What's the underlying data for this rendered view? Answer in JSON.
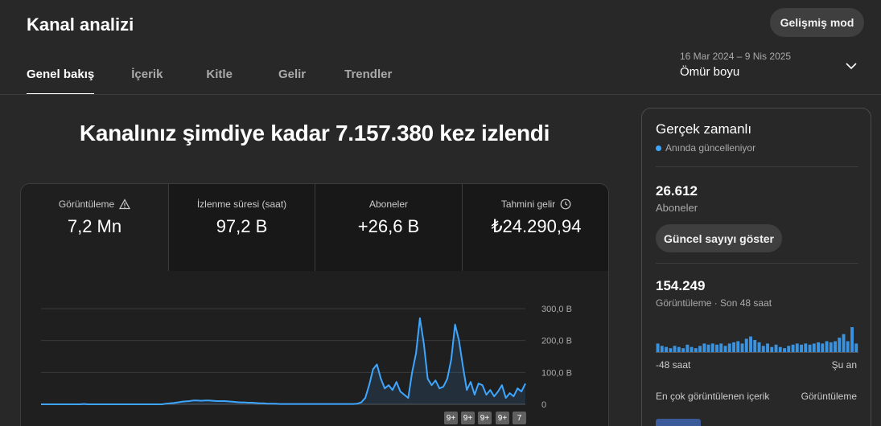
{
  "header": {
    "title": "Kanal analizi",
    "advanced_mode_label": "Gelişmiş mod"
  },
  "tabs": [
    {
      "label": "Genel bakış",
      "active": true
    },
    {
      "label": "İçerik",
      "active": false
    },
    {
      "label": "Kitle",
      "active": false
    },
    {
      "label": "Gelir",
      "active": false
    },
    {
      "label": "Trendler",
      "active": false
    }
  ],
  "date_picker": {
    "range": "16 Mar 2024 – 9 Nis 2025",
    "period": "Ömür boyu",
    "icon": "chevron-down-icon"
  },
  "headline": "Kanalınız şimdiye kadar 7.157.380 kez izlendi",
  "metrics": [
    {
      "label": "Görüntüleme",
      "value": "7,2 Mn",
      "icon": "warning-icon"
    },
    {
      "label": "İzlenme süresi (saat)",
      "value": "97,2 B"
    },
    {
      "label": "Aboneler",
      "value": "+26,6 B"
    },
    {
      "label": "Tahmini gelir",
      "value": "₺24.290,94",
      "icon": "clock-icon"
    }
  ],
  "chart_data": {
    "type": "line",
    "series": [
      {
        "values": [
          0,
          0,
          0,
          0,
          0,
          0,
          0,
          0,
          0,
          0,
          0,
          1,
          0,
          0,
          0,
          0,
          0,
          0,
          0,
          0,
          0,
          0,
          0,
          0,
          0,
          0,
          0,
          0,
          0,
          0,
          0,
          0,
          2,
          3,
          4,
          6,
          8,
          9,
          10,
          12,
          12,
          11,
          12,
          12,
          11,
          10,
          10,
          10,
          9,
          8,
          7,
          6,
          6,
          5,
          5,
          4,
          3,
          3,
          2,
          2,
          2,
          1,
          1,
          1,
          1,
          1,
          1,
          1,
          1,
          1,
          1,
          1,
          1,
          1,
          1,
          1,
          1,
          1,
          1,
          1,
          1,
          2,
          6,
          20,
          60,
          110,
          125,
          80,
          50,
          60,
          45,
          70,
          40,
          30,
          20,
          100,
          160,
          270,
          190,
          80,
          60,
          75,
          50,
          55,
          80,
          140,
          250,
          200,
          120,
          45,
          70,
          30,
          65,
          60,
          30,
          45,
          25,
          40,
          60,
          20,
          35,
          25,
          50,
          40,
          65
        ]
      }
    ],
    "y_ticks": [
      "0",
      "100,0 B",
      "200,0 B",
      "300,0 B"
    ],
    "ylim": [
      0,
      300
    ],
    "grid": true,
    "line_color": "#3ea6ff",
    "badges": [
      "9+",
      "9+",
      "9+",
      "9+",
      "7"
    ]
  },
  "realtime": {
    "title": "Gerçek zamanlı",
    "subtitle": "Anında güncelleniyor",
    "subscribers_value": "26.612",
    "subscribers_label": "Aboneler",
    "show_count_button": "Güncel sayıyı göster",
    "views_value": "154.249",
    "views_label": "Görüntüleme · Son 48 saat",
    "bars": [
      8,
      6,
      5,
      4,
      6,
      5,
      4,
      7,
      5,
      4,
      6,
      8,
      7,
      8,
      7,
      8,
      6,
      8,
      9,
      10,
      8,
      12,
      14,
      11,
      9,
      6,
      8,
      5,
      7,
      5,
      4,
      6,
      7,
      8,
      7,
      8,
      7,
      8,
      9,
      8,
      10,
      9,
      10,
      13,
      16,
      10,
      22,
      8
    ],
    "axis_left": "-48 saat",
    "axis_right": "Şu an",
    "top_content_label": "En çok görüntülenen içerik",
    "top_content_metric": "Görüntüleme"
  }
}
